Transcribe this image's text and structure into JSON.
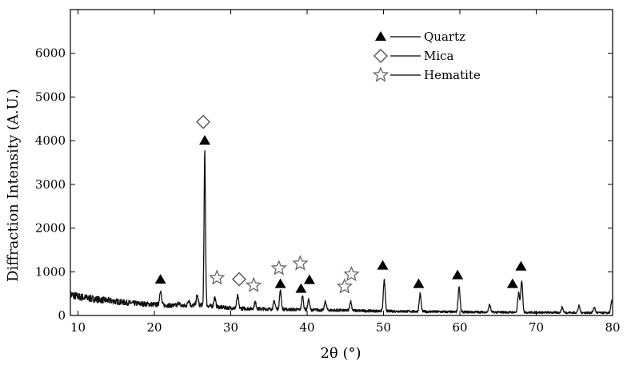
{
  "chart_data": {
    "type": "line",
    "title": "",
    "xlabel": "2θ (°)",
    "ylabel": "Diffraction Intensity (A.U.)",
    "xlim": [
      9,
      80
    ],
    "ylim": [
      0,
      7000
    ],
    "x_ticks": [
      10,
      20,
      30,
      40,
      50,
      60,
      70,
      80
    ],
    "y_ticks": [
      0,
      1000,
      2000,
      3000,
      4000,
      5000,
      6000
    ],
    "grid": false,
    "legend_position": "top-right",
    "legend": [
      {
        "marker": "filled-triangle",
        "label": "Quartz"
      },
      {
        "marker": "open-diamond",
        "label": "Mica"
      },
      {
        "marker": "open-star",
        "label": "Hematite"
      }
    ],
    "series": [
      {
        "baseline": [
          [
            9,
            480
          ],
          [
            10,
            430
          ],
          [
            12,
            380
          ],
          [
            14,
            340
          ],
          [
            16,
            300
          ],
          [
            18,
            270
          ],
          [
            20,
            250
          ],
          [
            22,
            230
          ],
          [
            24,
            220
          ],
          [
            26,
            240
          ],
          [
            28,
            200
          ],
          [
            30,
            170
          ],
          [
            34,
            150
          ],
          [
            40,
            130
          ],
          [
            50,
            100
          ],
          [
            60,
            80
          ],
          [
            70,
            70
          ],
          [
            80,
            60
          ]
        ],
        "peaks": [
          {
            "x": 20.8,
            "y": 580
          },
          {
            "x": 23.2,
            "y": 290
          },
          {
            "x": 24.5,
            "y": 360
          },
          {
            "x": 25.6,
            "y": 460
          },
          {
            "x": 26.6,
            "y": 3780
          },
          {
            "x": 27.9,
            "y": 410
          },
          {
            "x": 30.9,
            "y": 450
          },
          {
            "x": 33.2,
            "y": 310
          },
          {
            "x": 35.7,
            "y": 330
          },
          {
            "x": 36.5,
            "y": 560
          },
          {
            "x": 39.4,
            "y": 440
          },
          {
            "x": 40.2,
            "y": 360
          },
          {
            "x": 42.4,
            "y": 320
          },
          {
            "x": 45.7,
            "y": 320
          },
          {
            "x": 50.1,
            "y": 810
          },
          {
            "x": 54.8,
            "y": 500
          },
          {
            "x": 59.9,
            "y": 660
          },
          {
            "x": 63.9,
            "y": 250
          },
          {
            "x": 67.7,
            "y": 520
          },
          {
            "x": 68.1,
            "y": 800
          },
          {
            "x": 73.4,
            "y": 190
          },
          {
            "x": 75.6,
            "y": 220
          },
          {
            "x": 77.6,
            "y": 190
          },
          {
            "x": 79.9,
            "y": 330
          }
        ]
      }
    ],
    "annotations": [
      {
        "marker": "filled-triangle",
        "x": 20.8,
        "y": 820
      },
      {
        "marker": "open-diamond",
        "x": 26.4,
        "y": 4430
      },
      {
        "marker": "filled-triangle",
        "x": 26.6,
        "y": 4000
      },
      {
        "marker": "open-star",
        "x": 28.2,
        "y": 860
      },
      {
        "marker": "open-diamond",
        "x": 31.1,
        "y": 830
      },
      {
        "marker": "open-star",
        "x": 33.0,
        "y": 690
      },
      {
        "marker": "open-star",
        "x": 36.3,
        "y": 1080
      },
      {
        "marker": "filled-triangle",
        "x": 36.5,
        "y": 720
      },
      {
        "marker": "open-star",
        "x": 39.1,
        "y": 1190
      },
      {
        "marker": "filled-triangle",
        "x": 39.2,
        "y": 610
      },
      {
        "marker": "filled-triangle",
        "x": 40.3,
        "y": 810
      },
      {
        "marker": "open-star",
        "x": 44.9,
        "y": 660
      },
      {
        "marker": "open-star",
        "x": 45.8,
        "y": 940
      },
      {
        "marker": "filled-triangle",
        "x": 49.9,
        "y": 1140
      },
      {
        "marker": "filled-triangle",
        "x": 54.6,
        "y": 720
      },
      {
        "marker": "filled-triangle",
        "x": 59.7,
        "y": 920
      },
      {
        "marker": "filled-triangle",
        "x": 66.9,
        "y": 720
      },
      {
        "marker": "filled-triangle",
        "x": 68.0,
        "y": 1120
      }
    ]
  }
}
